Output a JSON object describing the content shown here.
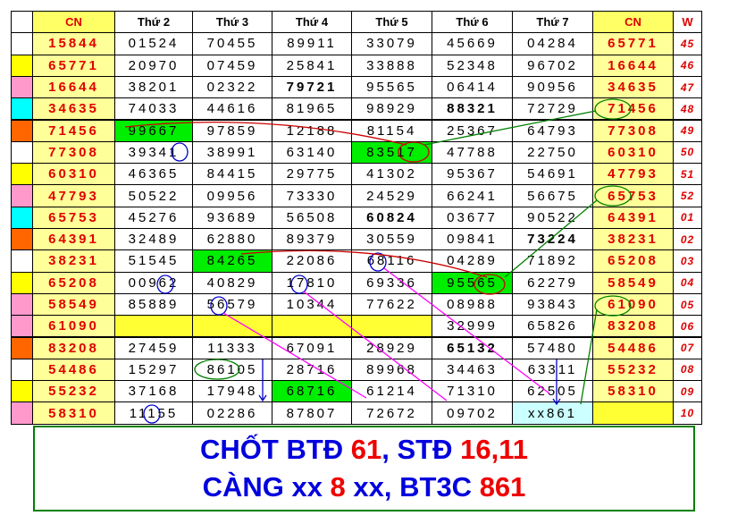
{
  "table": {
    "header": [
      "CN",
      "Thứ 2",
      "Thứ 3",
      "Thứ 4",
      "Thứ 5",
      "Thứ 6",
      "Thứ 7",
      "CN",
      "W"
    ],
    "rows": [
      {
        "marker": "#ffffff",
        "cells": [
          "15844",
          "01524",
          "70455",
          "89911",
          "33079",
          "45669",
          "04284",
          "65771",
          "45"
        ]
      },
      {
        "marker": "#ffff00",
        "cells": [
          "65771",
          "20970",
          "07459",
          "25841",
          "33888",
          "52348",
          "96702",
          "16644",
          "46"
        ]
      },
      {
        "marker": "#ff99cc",
        "cells": [
          "16644",
          "38201",
          "02322",
          "79721",
          "95565",
          "06414",
          "90956",
          "34635",
          "47"
        ]
      },
      {
        "marker": "#00ffff",
        "cells": [
          "34635",
          "74033",
          "44616",
          "81965",
          "98929",
          "88321",
          "72729",
          "71456",
          "48"
        ]
      },
      {
        "marker": "#ff6600",
        "cells": [
          "71456",
          "99667",
          "97859",
          "12188",
          "81154",
          "25367",
          "64793",
          "77308",
          "49"
        ]
      },
      {
        "marker": "#ffffff",
        "cells": [
          "77308",
          "39341",
          "38991",
          "63140",
          "83517",
          "47788",
          "22750",
          "60310",
          "50"
        ]
      },
      {
        "marker": "#ffff00",
        "cells": [
          "60310",
          "46365",
          "84415",
          "29775",
          "41302",
          "95367",
          "54691",
          "47793",
          "51"
        ]
      },
      {
        "marker": "#ff99cc",
        "cells": [
          "47793",
          "50522",
          "09956",
          "73330",
          "24529",
          "66241",
          "56675",
          "65753",
          "52"
        ]
      },
      {
        "marker": "#00ffff",
        "cells": [
          "65753",
          "45276",
          "93689",
          "56508",
          "60824",
          "03677",
          "90522",
          "64391",
          "01"
        ]
      },
      {
        "marker": "#ff6600",
        "cells": [
          "64391",
          "32489",
          "62880",
          "89379",
          "30559",
          "09841",
          "73224",
          "38231",
          "02"
        ]
      },
      {
        "marker": "#ffffff",
        "cells": [
          "38231",
          "51545",
          "84265",
          "22086",
          "68116",
          "04289",
          "71892",
          "65208",
          "03"
        ]
      },
      {
        "marker": "#ffff00",
        "cells": [
          "65208",
          "00962",
          "40829",
          "17810",
          "69336",
          "95565",
          "62279",
          "58549",
          "04"
        ]
      },
      {
        "marker": "#ff99cc",
        "cells": [
          "58549",
          "85889",
          "56579",
          "10344",
          "77622",
          "08988",
          "93843",
          "61090",
          "05"
        ]
      },
      {
        "marker": "#ff99cc",
        "cells": [
          "61090",
          null,
          null,
          null,
          null,
          "32999",
          "65826",
          "83208",
          "06"
        ]
      },
      {
        "marker": "#ff6600",
        "cells": [
          "83208",
          "27459",
          "11333",
          "67091",
          "28929",
          "65132",
          "57480",
          "54486",
          "07"
        ]
      },
      {
        "marker": "#ffffff",
        "cells": [
          "54486",
          "15297",
          "86105",
          "28716",
          "89968",
          "34463",
          "63311",
          "55232",
          "08"
        ]
      },
      {
        "marker": "#ffff00",
        "cells": [
          "55232",
          "37168",
          "17948",
          "68716",
          "61214",
          "71310",
          "62505",
          "58310",
          "09"
        ]
      },
      {
        "marker": "#ff99cc",
        "cells": [
          "58310",
          "11155",
          "02286",
          "87807",
          "72672",
          "09702",
          "xx861",
          null,
          "10"
        ]
      }
    ]
  },
  "footer": {
    "line1": [
      "CHỐT BTĐ ",
      "61",
      ", STĐ ",
      "16,11"
    ],
    "line2": [
      "CÀNG xx ",
      "8",
      " xx, BT3C ",
      "861"
    ]
  }
}
